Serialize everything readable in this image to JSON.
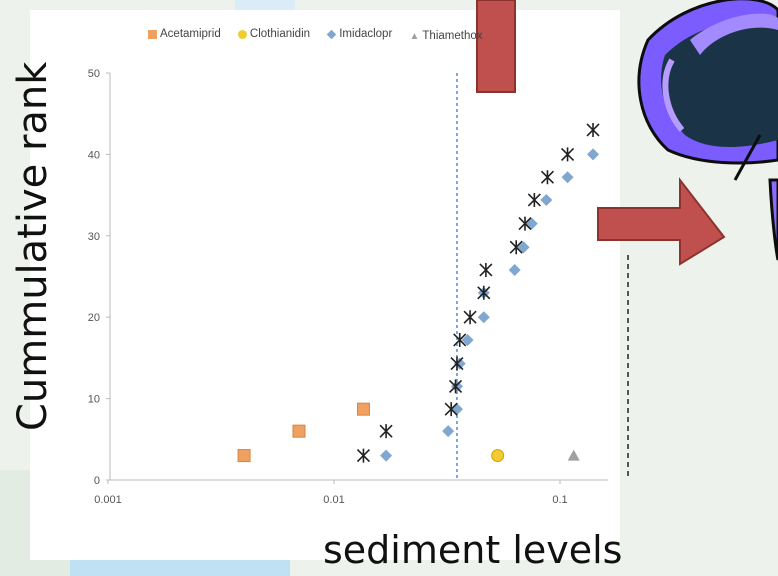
{
  "chart_data": {
    "type": "scatter",
    "x_scale": "log",
    "xlim": [
      0.001,
      0.3
    ],
    "ylim": [
      0,
      50
    ],
    "xticks": [
      "0.001",
      "0.01",
      "0.1"
    ],
    "yticks": [
      "0",
      "10",
      "20",
      "30",
      "40",
      "50"
    ],
    "xlabel": "sediment levels",
    "ylabel": "Cummulative rank",
    "legend_position": "top",
    "reference_lines_x": [
      0.035,
      0.2
    ],
    "series": [
      {
        "name": "Acetamiprid",
        "marker": "square",
        "color": "#f0a060",
        "points": [
          [
            0.004,
            3
          ],
          [
            0.007,
            6
          ],
          [
            0.0135,
            8.7
          ]
        ]
      },
      {
        "name": "Clothianidin",
        "marker": "circle",
        "color": "#f2cc2e",
        "points": [
          [
            0.053,
            3
          ]
        ]
      },
      {
        "name": "Imidacloprid",
        "marker": "diamond",
        "color": "#7fa7cf",
        "points": [
          [
            0.017,
            3
          ],
          [
            0.032,
            6
          ],
          [
            0.035,
            8.7
          ],
          [
            0.035,
            11.5
          ],
          [
            0.036,
            14.3
          ],
          [
            0.039,
            17.2
          ],
          [
            0.046,
            20
          ],
          [
            0.046,
            23
          ],
          [
            0.063,
            25.8
          ],
          [
            0.069,
            28.6
          ],
          [
            0.075,
            31.5
          ],
          [
            0.087,
            34.4
          ],
          [
            0.108,
            37.2
          ],
          [
            0.14,
            40
          ]
        ]
      },
      {
        "name": "Thiamethoxam",
        "marker": "triangle",
        "color": "#a0a0a0",
        "points": [
          [
            0.115,
            3
          ]
        ]
      },
      {
        "name": "",
        "marker": "x-star",
        "color": "#222222",
        "points": [
          [
            0.0135,
            3
          ],
          [
            0.017,
            6
          ],
          [
            0.033,
            8.7
          ],
          [
            0.0345,
            11.5
          ],
          [
            0.035,
            14.3
          ],
          [
            0.036,
            17.2
          ],
          [
            0.04,
            20
          ],
          [
            0.046,
            23
          ],
          [
            0.047,
            25.8
          ],
          [
            0.064,
            28.6
          ],
          [
            0.07,
            31.5
          ],
          [
            0.077,
            34.4
          ],
          [
            0.088,
            37.2
          ],
          [
            0.108,
            40
          ],
          [
            0.14,
            43
          ]
        ]
      }
    ]
  },
  "legend": {
    "items": [
      "Acetamiprid",
      "Clothianidin",
      "Imidaclopr",
      "Thiamethox"
    ]
  },
  "colors": {
    "arrow": "#c0504d",
    "ref_line_blue": "#4a90d9",
    "butterfly_dark": "#1a3346",
    "butterfly_purple": "#7c4dff"
  }
}
